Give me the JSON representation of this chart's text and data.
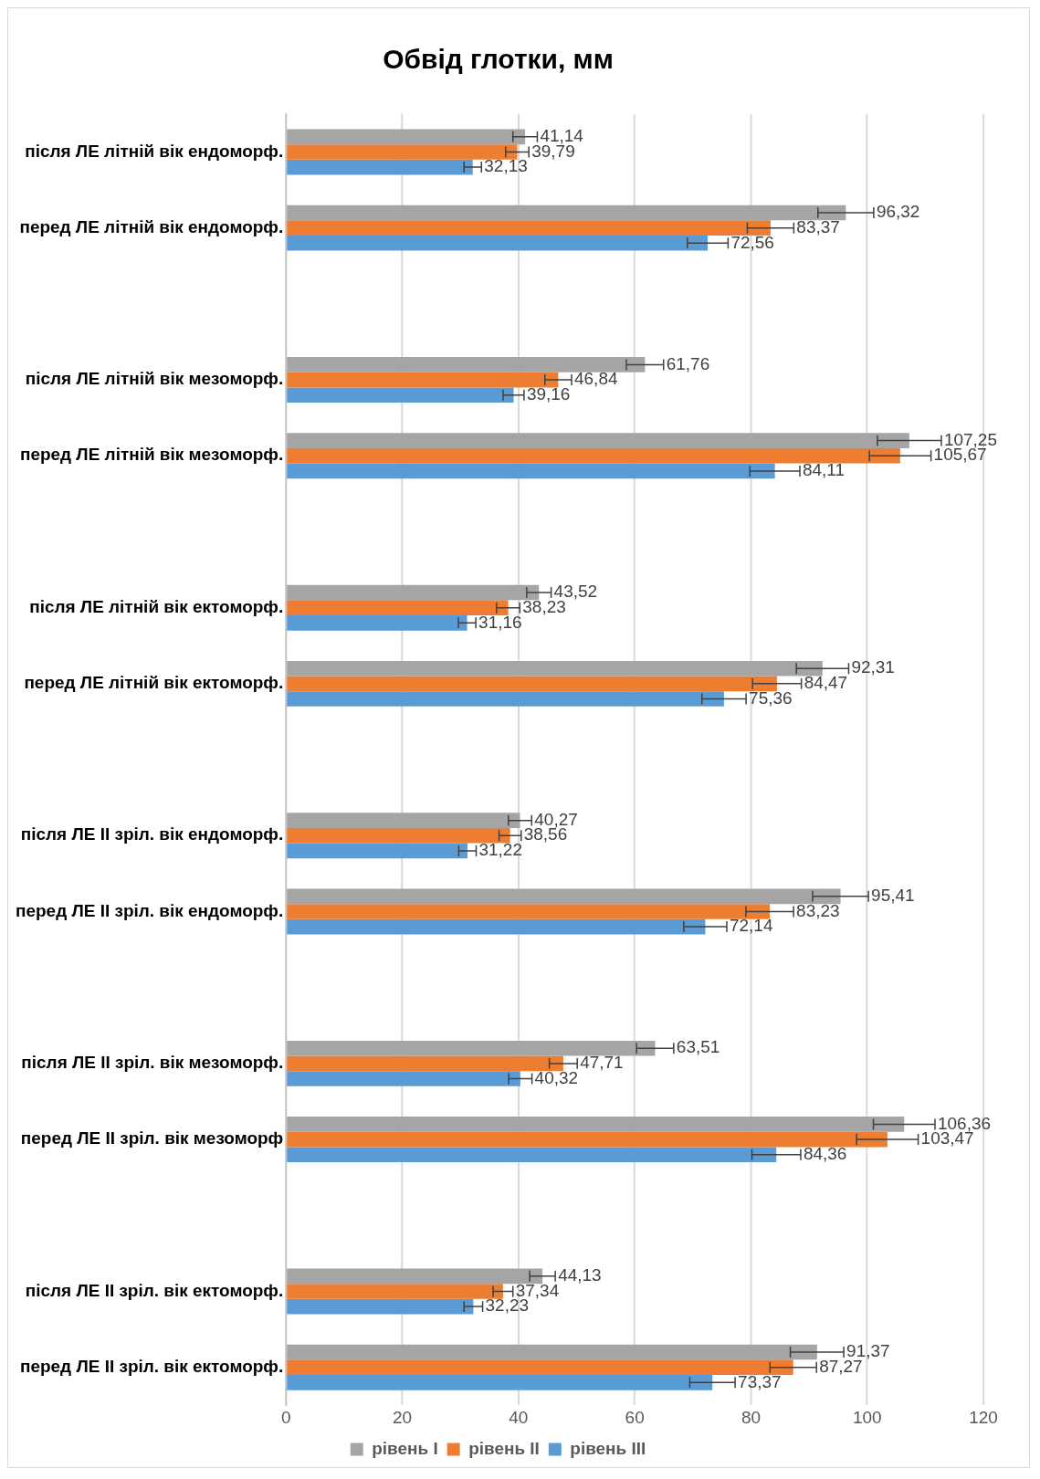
{
  "chart_data": {
    "type": "bar",
    "orientation": "horizontal",
    "title": "Обвід глотки, мм",
    "categories": [
      "після ЛЕ літній вік ендоморф.",
      "перед ЛЕ літній вік ендоморф.",
      null,
      "після ЛЕ літній вік мезоморф.",
      "перед ЛЕ літній вік мезоморф.",
      null,
      "після ЛЕ літній вік ектоморф.",
      "перед ЛЕ літній вік ектоморф.",
      null,
      "після ЛЕ II зріл. вік ендоморф.",
      "перед ЛЕ II зріл. вік ендоморф.",
      null,
      "після ЛЕ II зріл. вік мезоморф.",
      "перед ЛЕ II зріл. вік мезоморф",
      null,
      "після ЛЕ II зріл. вік ектоморф.",
      "перед ЛЕ II зріл. вік ектоморф."
    ],
    "series": [
      {
        "name": "рівень I",
        "color": "#a5a5a5",
        "values": [
          41.14,
          96.32,
          null,
          61.76,
          107.25,
          null,
          43.52,
          92.31,
          null,
          40.27,
          95.41,
          null,
          63.51,
          106.36,
          null,
          44.13,
          91.37
        ],
        "errors": [
          2.1,
          4.8,
          null,
          3.2,
          5.5,
          null,
          2.1,
          4.5,
          null,
          2,
          4.8,
          null,
          3.2,
          5.3,
          null,
          2.2,
          4.6
        ],
        "value_labels": [
          "41,14",
          "96,32",
          null,
          "61,76",
          "107,25",
          null,
          "43,52",
          "92,31",
          null,
          "40,27",
          "95,41",
          null,
          "63,51",
          "106,36",
          null,
          "44,13",
          "91,37"
        ]
      },
      {
        "name": "рівень II",
        "color": "#ed7d31",
        "values": [
          39.79,
          83.37,
          null,
          46.84,
          105.67,
          null,
          38.23,
          84.47,
          null,
          38.56,
          83.23,
          null,
          47.71,
          103.47,
          null,
          37.34,
          87.27
        ],
        "errors": [
          2,
          4,
          null,
          2.3,
          5.3,
          null,
          2,
          4.2,
          null,
          1.9,
          4.1,
          null,
          2.4,
          5.3,
          null,
          1.7,
          4
        ],
        "value_labels": [
          "39,79",
          "83,37",
          null,
          "46,84",
          "105,67",
          null,
          "38,23",
          "84,47",
          null,
          "38,56",
          "83,23",
          null,
          "47,71",
          "103,47",
          null,
          "37,34",
          "87,27"
        ]
      },
      {
        "name": "рівень III",
        "color": "#5b9bd5",
        "values": [
          32.13,
          72.56,
          null,
          39.16,
          84.11,
          null,
          31.16,
          75.36,
          null,
          31.22,
          72.14,
          null,
          40.32,
          84.36,
          null,
          32.23,
          73.37
        ],
        "errors": [
          1.5,
          3.5,
          null,
          1.8,
          4.3,
          null,
          1.5,
          3.8,
          null,
          1.5,
          3.7,
          null,
          2,
          4.2,
          null,
          1.6,
          3.9
        ],
        "value_labels": [
          "32,13",
          "72,56",
          null,
          "39,16",
          "84,11",
          null,
          "31,16",
          "75,36",
          null,
          "31,22",
          "72,14",
          null,
          "40,32",
          "84,36",
          null,
          "32,23",
          "73,37"
        ]
      }
    ],
    "xlim": [
      0,
      120
    ],
    "xticks": [
      0,
      20,
      40,
      60,
      80,
      100,
      120
    ],
    "grid": "x",
    "legend": "bottom"
  }
}
